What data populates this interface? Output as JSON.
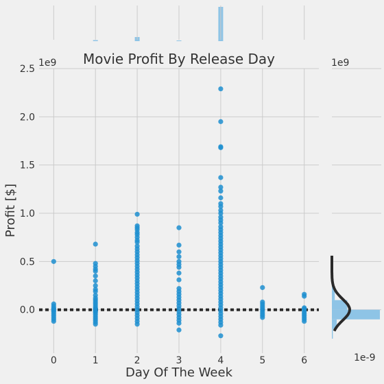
{
  "chart_data": {
    "type": "scatter",
    "title": "Movie Profit By Release Day",
    "xlabel": "Day Of The Week",
    "ylabel": "Profit [$]",
    "y_offset_label": "1e9",
    "right_offset_label": "1e9",
    "right_bottom_label": "1e-9",
    "xlim": [
      -0.35,
      6.35
    ],
    "ylim": [
      -0.45,
      2.5
    ],
    "x_ticks": [
      0,
      1,
      2,
      3,
      4,
      5,
      6
    ],
    "y_ticks": [
      -0.0,
      0.5,
      1.0,
      1.5,
      2.0,
      2.5
    ],
    "y_tick_labels": [
      "0.0",
      "0.5",
      "1.0",
      "1.5",
      "2.0",
      "2.5"
    ],
    "grid": true,
    "reference_line_y": 0,
    "colors": {
      "points": "#1f8fd0",
      "hist": "#8ec4e6",
      "line": "#2a2a2a",
      "grid": "#cbcbcb",
      "background": "#f0f0f0"
    },
    "series": [
      {
        "x": 0,
        "values": [
          0.5,
          0.06,
          0.04,
          0.02,
          0.01,
          0.0,
          -0.01,
          -0.02,
          -0.04,
          -0.06,
          -0.08,
          -0.1,
          -0.12
        ]
      },
      {
        "x": 1,
        "values": [
          0.68,
          0.48,
          0.45,
          0.42,
          0.4,
          0.35,
          0.3,
          0.25,
          0.21,
          0.19,
          0.15,
          0.12,
          0.1,
          0.08,
          0.06,
          0.04,
          0.02,
          0.01,
          0.0,
          -0.01,
          -0.02,
          -0.03,
          -0.05,
          -0.07,
          -0.09,
          -0.11,
          -0.13,
          -0.15
        ]
      },
      {
        "x": 2,
        "values": [
          0.99,
          0.87,
          0.85,
          0.83,
          0.8,
          0.78,
          0.75,
          0.72,
          0.7,
          0.66,
          0.63,
          0.6,
          0.57,
          0.54,
          0.51,
          0.48,
          0.45,
          0.42,
          0.39,
          0.36,
          0.33,
          0.3,
          0.27,
          0.24,
          0.21,
          0.18,
          0.15,
          0.12,
          0.09,
          0.06,
          0.03,
          0.0,
          -0.03,
          -0.06,
          -0.09,
          -0.12,
          -0.15
        ]
      },
      {
        "x": 3,
        "values": [
          0.85,
          0.67,
          0.6,
          0.55,
          0.5,
          0.47,
          0.44,
          0.38,
          0.31,
          0.22,
          0.19,
          0.16,
          0.13,
          0.1,
          0.07,
          0.04,
          0.01,
          -0.02,
          -0.05,
          -0.08,
          -0.11,
          -0.14,
          -0.21
        ]
      },
      {
        "x": 4,
        "values": [
          2.29,
          1.95,
          1.69,
          1.68,
          1.37,
          1.27,
          1.23,
          1.16,
          1.1,
          1.07,
          1.03,
          1.0,
          0.96,
          0.93,
          0.9,
          0.86,
          0.83,
          0.8,
          0.77,
          0.74,
          0.71,
          0.68,
          0.65,
          0.62,
          0.59,
          0.56,
          0.53,
          0.5,
          0.47,
          0.44,
          0.41,
          0.38,
          0.35,
          0.32,
          0.29,
          0.26,
          0.23,
          0.2,
          0.17,
          0.14,
          0.11,
          0.08,
          0.05,
          0.02,
          -0.01,
          -0.04,
          -0.07,
          -0.1,
          -0.13,
          -0.16,
          -0.27
        ]
      },
      {
        "x": 5,
        "values": [
          0.23,
          0.08,
          0.06,
          0.04,
          0.02,
          0.0,
          -0.02,
          -0.04,
          -0.06,
          -0.08
        ]
      },
      {
        "x": 6,
        "values": [
          0.16,
          0.14,
          0.02,
          0.01,
          0.0,
          -0.02,
          -0.04,
          -0.06,
          -0.08,
          -0.1,
          -0.12
        ]
      }
    ],
    "top_histogram": [
      {
        "x": 1.0,
        "height": 0.03
      },
      {
        "x": 2.0,
        "height": 0.12
      },
      {
        "x": 3.0,
        "height": 0.02
      },
      {
        "x": 4.0,
        "height": 1.0
      }
    ],
    "right_histogram": [
      {
        "y": -0.25,
        "width": 0.02
      },
      {
        "y": -0.15,
        "width": 0.1
      },
      {
        "y": -0.05,
        "width": 1.0
      },
      {
        "y": 0.05,
        "width": 0.32
      },
      {
        "y": 0.15,
        "width": 0.06
      },
      {
        "y": 0.25,
        "width": 0.03
      },
      {
        "y": 0.35,
        "width": 0.015
      }
    ]
  }
}
